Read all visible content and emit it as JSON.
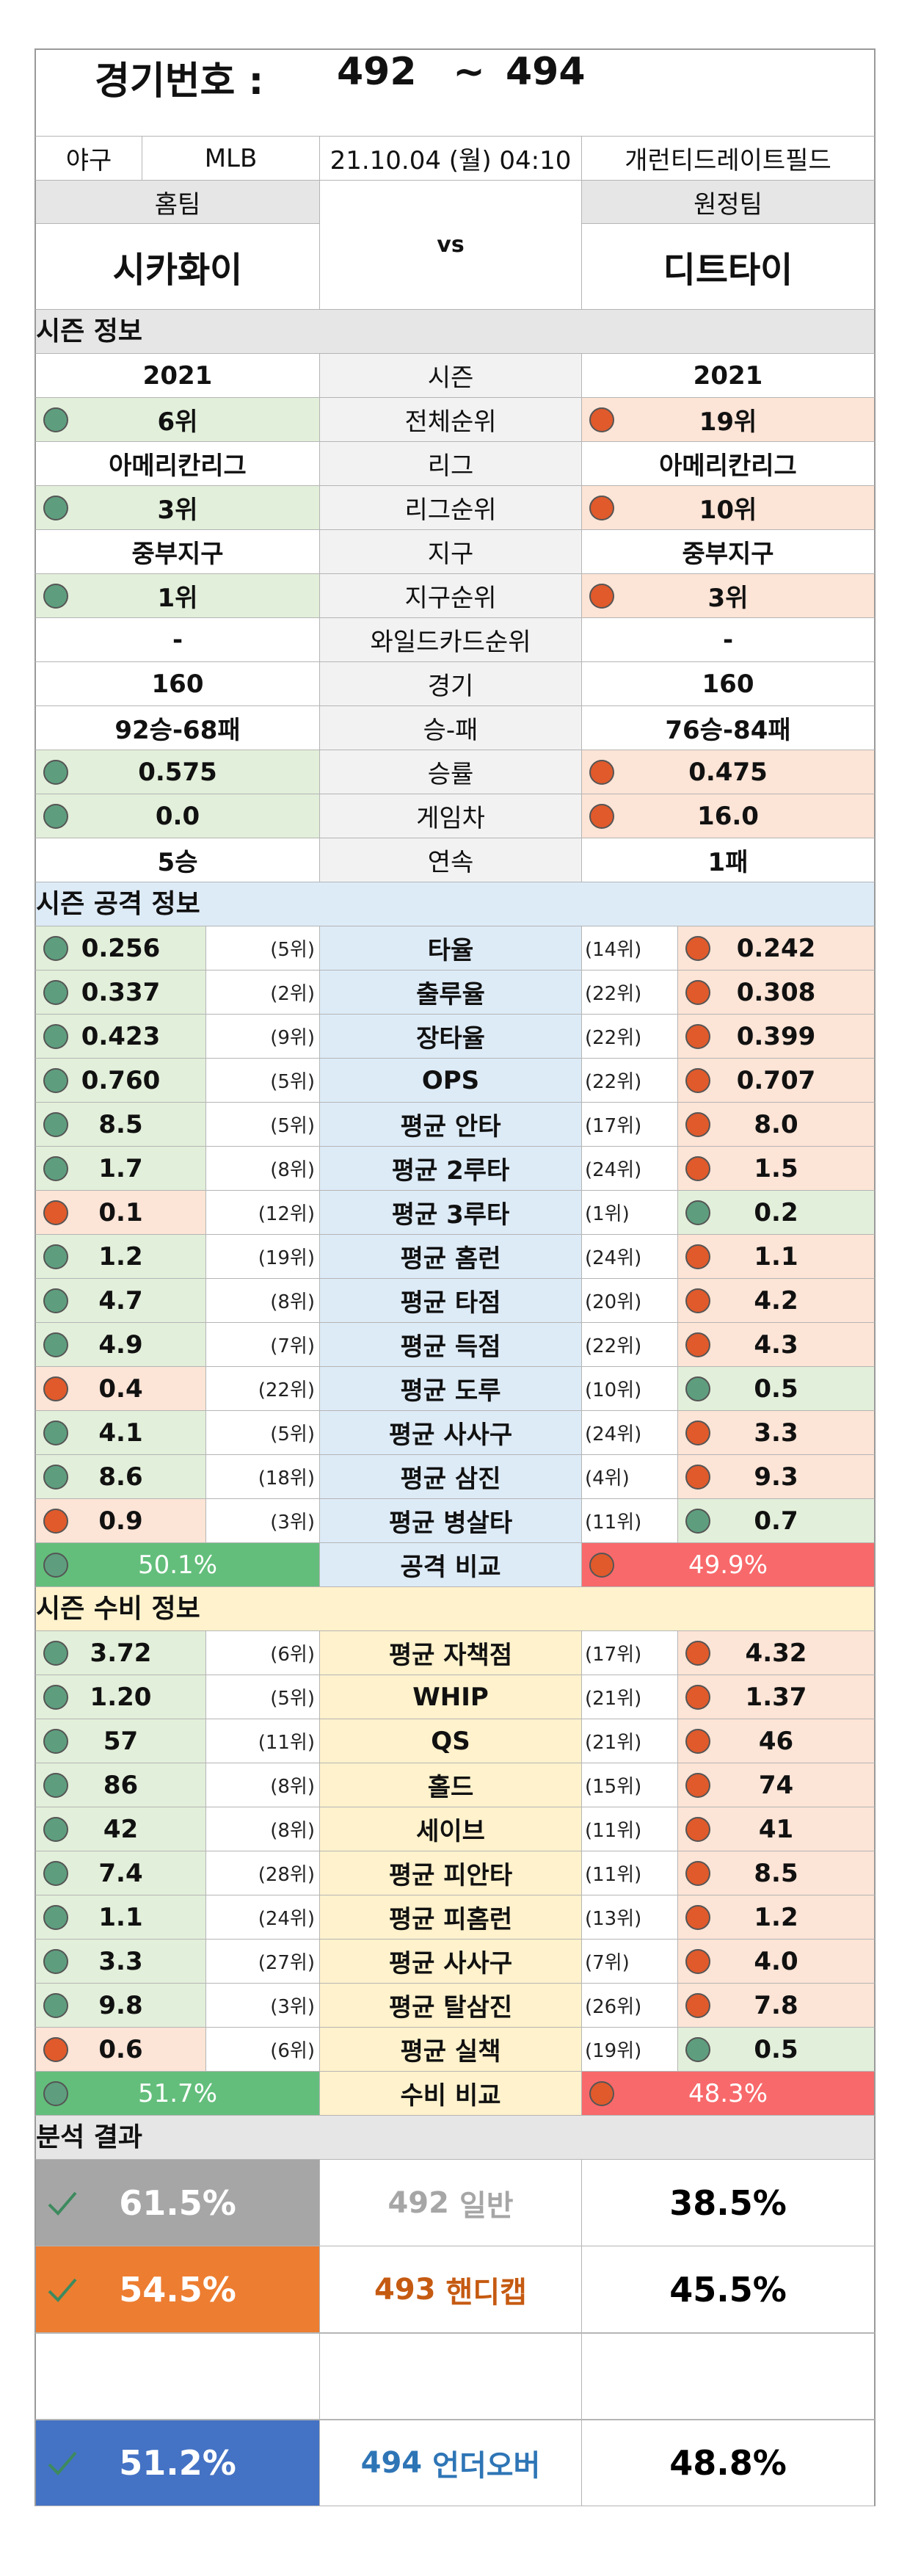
{
  "colors": {
    "home_green": "#e2efda",
    "away_orange": "#fce4d6",
    "attack_blue": "#ddebf7",
    "defense_yellow": "#fff2cc",
    "compare_green": "#63be7b",
    "compare_red": "#f8696b",
    "dot_green": "#5e9e7e",
    "dot_red": "#e05a2c",
    "gray_box": "#a6a6a6",
    "orange_box": "#ed7d31",
    "blue_box": "#4472c4"
  },
  "header": {
    "label": "경기번호 :",
    "from": "492",
    "tilde": "~",
    "to": "494"
  },
  "match": {
    "sport": "야구",
    "league": "MLB",
    "datetime": "21.10.04 (월) 04:10",
    "stadium": "개런티드레이트필드",
    "home_label": "홈팀",
    "away_label": "원정팀",
    "vs": "vs",
    "home_team": "시카화이",
    "away_team": "디트타이"
  },
  "season_info": {
    "title": "시즌 정보",
    "rows": [
      {
        "label": "시즌",
        "home": "2021",
        "away": "2021",
        "hdot": "",
        "adot": ""
      },
      {
        "label": "전체순위",
        "home": "6위",
        "away": "19위",
        "hdot": "g",
        "adot": "r"
      },
      {
        "label": "리그",
        "home": "아메리칸리그",
        "away": "아메리칸리그",
        "hdot": "",
        "adot": ""
      },
      {
        "label": "리그순위",
        "home": "3위",
        "away": "10위",
        "hdot": "g",
        "adot": "r"
      },
      {
        "label": "지구",
        "home": "중부지구",
        "away": "중부지구",
        "hdot": "",
        "adot": ""
      },
      {
        "label": "지구순위",
        "home": "1위",
        "away": "3위",
        "hdot": "g",
        "adot": "r"
      },
      {
        "label": "와일드카드순위",
        "home": "-",
        "away": "-",
        "hdot": "",
        "adot": ""
      },
      {
        "label": "경기",
        "home": "160",
        "away": "160",
        "hdot": "",
        "adot": ""
      },
      {
        "label": "승-패",
        "home": "92승-68패",
        "away": "76승-84패",
        "hdot": "",
        "adot": ""
      },
      {
        "label": "승률",
        "home": "0.575",
        "away": "0.475",
        "hdot": "g",
        "adot": "r"
      },
      {
        "label": "게임차",
        "home": "0.0",
        "away": "16.0",
        "hdot": "g",
        "adot": "r"
      },
      {
        "label": "연속",
        "home": "5승",
        "away": "1패",
        "hdot": "",
        "adot": ""
      }
    ]
  },
  "attack": {
    "title": "시즌 공격 정보",
    "rows": [
      {
        "label": "타율",
        "home": "0.256",
        "hrank": "(5위)",
        "away": "0.242",
        "arank": "(14위)",
        "hwin": true
      },
      {
        "label": "출루율",
        "home": "0.337",
        "hrank": "(2위)",
        "away": "0.308",
        "arank": "(22위)",
        "hwin": true
      },
      {
        "label": "장타율",
        "home": "0.423",
        "hrank": "(9위)",
        "away": "0.399",
        "arank": "(22위)",
        "hwin": true
      },
      {
        "label": "OPS",
        "home": "0.760",
        "hrank": "(5위)",
        "away": "0.707",
        "arank": "(22위)",
        "hwin": true
      },
      {
        "label": "평균 안타",
        "home": "8.5",
        "hrank": "(5위)",
        "away": "8.0",
        "arank": "(17위)",
        "hwin": true
      },
      {
        "label": "평균 2루타",
        "home": "1.7",
        "hrank": "(8위)",
        "away": "1.5",
        "arank": "(24위)",
        "hwin": true
      },
      {
        "label": "평균 3루타",
        "home": "0.1",
        "hrank": "(12위)",
        "away": "0.2",
        "arank": "(1위)",
        "hwin": false
      },
      {
        "label": "평균 홈런",
        "home": "1.2",
        "hrank": "(19위)",
        "away": "1.1",
        "arank": "(24위)",
        "hwin": true
      },
      {
        "label": "평균 타점",
        "home": "4.7",
        "hrank": "(8위)",
        "away": "4.2",
        "arank": "(20위)",
        "hwin": true
      },
      {
        "label": "평균 득점",
        "home": "4.9",
        "hrank": "(7위)",
        "away": "4.3",
        "arank": "(22위)",
        "hwin": true
      },
      {
        "label": "평균 도루",
        "home": "0.4",
        "hrank": "(22위)",
        "away": "0.5",
        "arank": "(10위)",
        "hwin": false
      },
      {
        "label": "평균 사사구",
        "home": "4.1",
        "hrank": "(5위)",
        "away": "3.3",
        "arank": "(24위)",
        "hwin": true
      },
      {
        "label": "평균 삼진",
        "home": "8.6",
        "hrank": "(18위)",
        "away": "9.3",
        "arank": "(4위)",
        "hwin": true
      },
      {
        "label": "평균 병살타",
        "home": "0.9",
        "hrank": "(3위)",
        "away": "0.7",
        "arank": "(11위)",
        "hwin": false
      }
    ],
    "compare": {
      "label": "공격 비교",
      "home": "50.1%",
      "away": "49.9%"
    }
  },
  "defense": {
    "title": "시즌 수비 정보",
    "rows": [
      {
        "label": "평균 자책점",
        "home": "3.72",
        "hrank": "(6위)",
        "away": "4.32",
        "arank": "(17위)",
        "hwin": true
      },
      {
        "label": "WHIP",
        "home": "1.20",
        "hrank": "(5위)",
        "away": "1.37",
        "arank": "(21위)",
        "hwin": true
      },
      {
        "label": "QS",
        "home": "57",
        "hrank": "(11위)",
        "away": "46",
        "arank": "(21위)",
        "hwin": true
      },
      {
        "label": "홀드",
        "home": "86",
        "hrank": "(8위)",
        "away": "74",
        "arank": "(15위)",
        "hwin": true
      },
      {
        "label": "세이브",
        "home": "42",
        "hrank": "(8위)",
        "away": "41",
        "arank": "(11위)",
        "hwin": true
      },
      {
        "label": "평균 피안타",
        "home": "7.4",
        "hrank": "(28위)",
        "away": "8.5",
        "arank": "(11위)",
        "hwin": true
      },
      {
        "label": "평균 피홈런",
        "home": "1.1",
        "hrank": "(24위)",
        "away": "1.2",
        "arank": "(13위)",
        "hwin": true
      },
      {
        "label": "평균 사사구",
        "home": "3.3",
        "hrank": "(27위)",
        "away": "4.0",
        "arank": "(7위)",
        "hwin": true
      },
      {
        "label": "평균 탈삼진",
        "home": "9.8",
        "hrank": "(3위)",
        "away": "7.8",
        "arank": "(26위)",
        "hwin": true
      },
      {
        "label": "평균 실책",
        "home": "0.6",
        "hrank": "(6위)",
        "away": "0.5",
        "arank": "(19위)",
        "hwin": false
      }
    ],
    "compare": {
      "label": "수비 비교",
      "home": "51.7%",
      "away": "48.3%"
    }
  },
  "analysis": {
    "title": "분석 결과",
    "rows": [
      {
        "home": "61.5%",
        "num": "492",
        "type": "일반",
        "away": "38.5%",
        "box": "#a6a6a6",
        "textcolor": "#a6a6a6"
      },
      {
        "home": "54.5%",
        "num": "493",
        "type": "핸디캡",
        "away": "45.5%",
        "box": "#ed7d31",
        "textcolor": "#c55a11"
      },
      {
        "home": "",
        "num": "",
        "type": "",
        "away": "",
        "box": "#ffffff",
        "textcolor": "#000000"
      },
      {
        "home": "51.2%",
        "num": "494",
        "type": "언더오버",
        "away": "48.8%",
        "box": "#4472c4",
        "textcolor": "#2e75b6"
      }
    ]
  }
}
